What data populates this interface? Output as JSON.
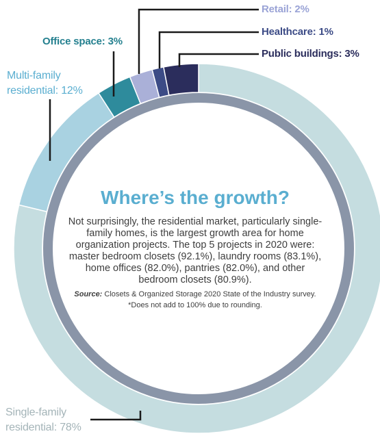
{
  "chart_data": {
    "type": "pie",
    "title": "Where’s the growth?",
    "body": "Not surprisingly, the residential market, particularly single-family homes, is the largest growth area for home organization projects. The top 5 projects in 2020 were: master bedroom closets (92.1%), laundry rooms (83.1%), home offices (82.0%), pantries (82.0%), and other bedroom closets (80.9%).",
    "source_label": "Source:",
    "source_text": " Closets & Organized Storage 2020 State of the Industry survey.",
    "note": "*Does not add to 100% due to rounding.",
    "slices": [
      {
        "label": "Single-family residential: 78%",
        "value": 78,
        "color": "#c5dde0"
      },
      {
        "label": "Multi-family residential: 12%",
        "value": 12,
        "color": "#a9d2e1"
      },
      {
        "label": "Office space: 3%",
        "value": 3,
        "color": "#2e8b9c"
      },
      {
        "label": "Retail: 2%",
        "value": 2,
        "color": "#aab0d8"
      },
      {
        "label": "Healthcare: 1%",
        "value": 1,
        "color": "#3c4b86"
      },
      {
        "label": "Public buildings: 3%",
        "value": 3,
        "color": "#2b2d5c"
      }
    ],
    "label_colors": {
      "Single-family residential: 78%": "#a4b4b8",
      "Multi-family residential: 12%": "#5aaed0",
      "Office space: 3%": "#24808f",
      "Retail: 2%": "#9aa3d6",
      "Healthcare: 1%": "#3c4b86",
      "Public buildings: 3%": "#2b2d5c"
    }
  }
}
